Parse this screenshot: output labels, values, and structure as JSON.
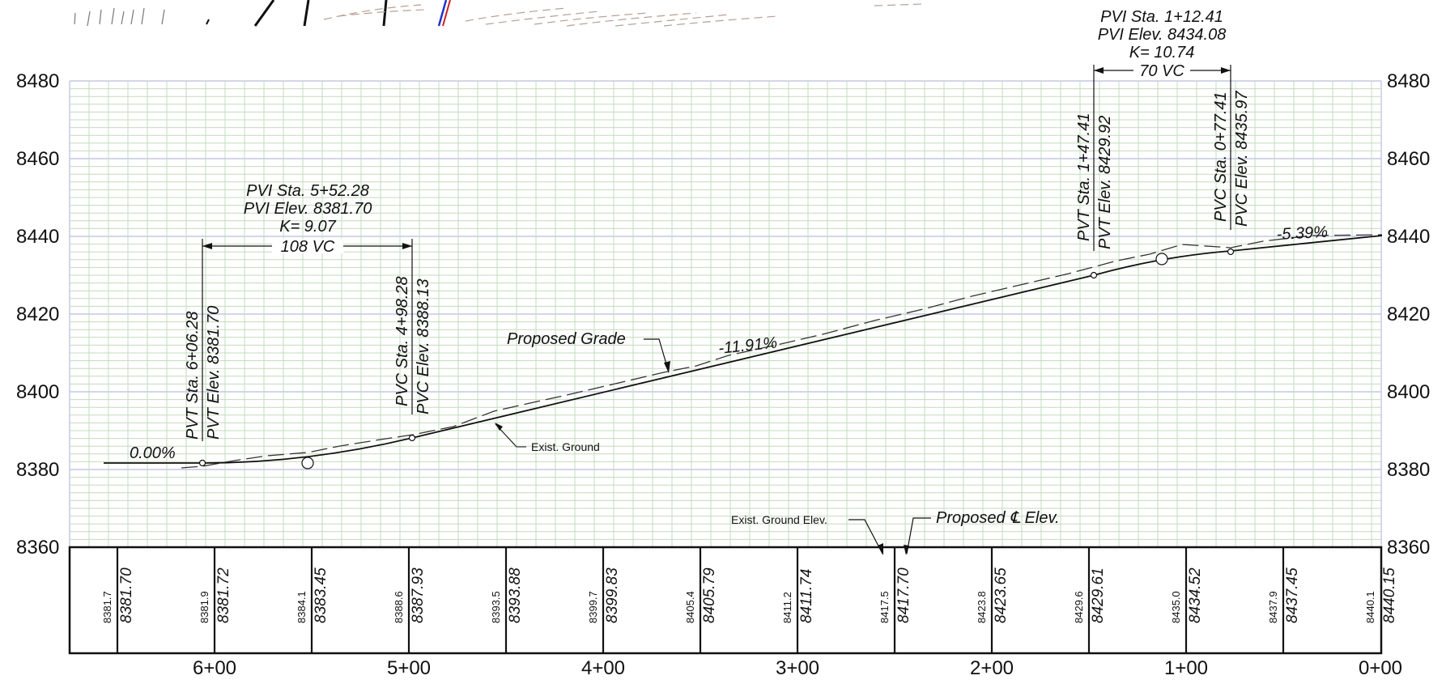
{
  "profile": {
    "elevation_ticks": [
      "8480",
      "8460",
      "8440",
      "8420",
      "8400",
      "8380",
      "8360"
    ],
    "station_ticks": [
      "6+00",
      "5+00",
      "4+00",
      "3+00",
      "2+00",
      "1+00",
      "0+00"
    ],
    "table": {
      "rows": [
        {
          "exist": "8381.7",
          "proposed": "8381.70"
        },
        {
          "exist": "8381.9",
          "proposed": "8381.72"
        },
        {
          "exist": "8384.1",
          "proposed": "8383.45"
        },
        {
          "exist": "8388.6",
          "proposed": "8387.93"
        },
        {
          "exist": "8393.5",
          "proposed": "8393.88"
        },
        {
          "exist": "8399.7",
          "proposed": "8399.83"
        },
        {
          "exist": "8405.4",
          "proposed": "8405.79"
        },
        {
          "exist": "8411.2",
          "proposed": "8411.74"
        },
        {
          "exist": "8417.5",
          "proposed": "8417.70"
        },
        {
          "exist": "8423.8",
          "proposed": "8423.65"
        },
        {
          "exist": "8429.6",
          "proposed": "8429.61"
        },
        {
          "exist": "8435.0",
          "proposed": "8434.52"
        },
        {
          "exist": "8437.9",
          "proposed": "8437.45"
        },
        {
          "exist": "8440.1",
          "proposed": "8440.15"
        }
      ],
      "exist_ground_label": "Exist. Ground Elev.",
      "proposed_label": "Proposed ℄ Elev."
    },
    "curve_left": {
      "pvi_sta": "PVI Sta. 5+52.28",
      "pvi_elev": "PVI Elev. 8381.70",
      "k": "K= 9.07",
      "vc": "108 VC",
      "pvt_sta": "PVT Sta. 6+06.28",
      "pvt_elev": "PVT Elev. 8381.70",
      "pvc_sta": "PVC Sta. 4+98.28",
      "pvc_elev": "PVC Elev. 8388.13"
    },
    "curve_right": {
      "pvi_sta": "PVI Sta. 1+12.41",
      "pvi_elev": "PVI Elev. 8434.08",
      "k": "K= 10.74",
      "vc": "70 VC",
      "pvt_sta": "PVT Sta. 1+47.41",
      "pvt_elev": "PVT Elev. 8429.92",
      "pvc_sta": "PVC Sta. 0+77.41",
      "pvc_elev": "PVC Elev. 8435.97"
    },
    "grades": {
      "left": "0.00%",
      "middle": "-11.91%",
      "right": "-5.39%"
    },
    "labels": {
      "proposed_grade": "Proposed Grade",
      "exist_ground": "Exist. Ground"
    },
    "colors": {
      "grid_green": "#c3dcbc",
      "grid_blue": "#c3c8e2",
      "line": "#111111",
      "accent_blue": "#2233cc",
      "accent_red": "#cc2222"
    }
  }
}
